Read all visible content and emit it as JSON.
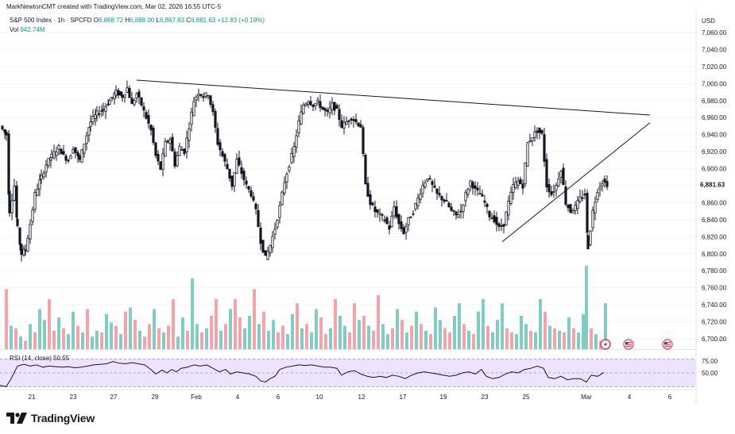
{
  "header": {
    "credit": "MarkNewtonCMT created with TradingView.com, Mar 02, 2026 16:55 UTC-5"
  },
  "legend": {
    "symbol": "S&P 500 Index · 1h · SPCFD",
    "open_label": "O",
    "open": "6,868.72",
    "high_label": "H",
    "high": "6,888.00",
    "low_label": "L",
    "low": "6,867.83",
    "close_label": "C",
    "close": "6,881.63",
    "change": "+12.83 (+0.19%)",
    "volume_label": "Vol",
    "volume": "942.74M"
  },
  "rsi": {
    "label": "RSI (14, close)",
    "value": "50.55"
  },
  "price_axis": {
    "currency": "USD",
    "current_price": "6,881.63"
  },
  "brand": {
    "name": "TradingView"
  },
  "colors": {
    "up": "#089981",
    "down": "#f23645",
    "candle": "#131722",
    "volume_up": "#7fccc2",
    "volume_down": "#f5a3a9",
    "rsi_band": "#e9def9",
    "rsi_border": "#b39ddb",
    "trendline": "#131722",
    "price_tag": "#ffffff"
  },
  "icons": [
    "flash-event-icon",
    "us-flag-event-icon",
    "us-flag-event-icon"
  ],
  "chart_data": {
    "type": "candlestick",
    "x_tick_labels": [
      "21",
      "23",
      "27",
      "29",
      "Feb",
      "4",
      "6",
      "10",
      "12",
      "17",
      "19",
      "23",
      "25",
      "Mar",
      "4",
      "6"
    ],
    "y_tick_labels": [
      "7,060.00",
      "7,040.00",
      "7,020.00",
      "7,000.00",
      "6,980.00",
      "6,960.00",
      "6,940.00",
      "6,920.00",
      "6,900.00",
      "6,880.00",
      "6,860.00",
      "6,840.00",
      "6,820.00",
      "6,800.00",
      "6,780.00",
      "6,760.00",
      "6,740.00",
      "6,720.00",
      "6,700.00"
    ],
    "ylim": [
      6694,
      7068
    ],
    "price_path": [
      [
        0,
        6950
      ],
      [
        8,
        6940
      ],
      [
        12,
        6850
      ],
      [
        18,
        6880
      ],
      [
        22,
        6830
      ],
      [
        27,
        6800
      ],
      [
        32,
        6805
      ],
      [
        38,
        6835
      ],
      [
        44,
        6870
      ],
      [
        52,
        6890
      ],
      [
        58,
        6905
      ],
      [
        65,
        6915
      ],
      [
        74,
        6925
      ],
      [
        80,
        6915
      ],
      [
        86,
        6910
      ],
      [
        92,
        6925
      ],
      [
        100,
        6910
      ],
      [
        106,
        6930
      ],
      [
        114,
        6955
      ],
      [
        122,
        6965
      ],
      [
        130,
        6970
      ],
      [
        138,
        6980
      ],
      [
        146,
        6990
      ],
      [
        154,
        6985
      ],
      [
        160,
        6995
      ],
      [
        166,
        6975
      ],
      [
        172,
        6988
      ],
      [
        178,
        6975
      ],
      [
        184,
        6960
      ],
      [
        190,
        6945
      ],
      [
        196,
        6915
      ],
      [
        202,
        6900
      ],
      [
        208,
        6930
      ],
      [
        214,
        6935
      ],
      [
        220,
        6905
      ],
      [
        226,
        6925
      ],
      [
        232,
        6920
      ],
      [
        238,
        6950
      ],
      [
        244,
        6980
      ],
      [
        250,
        6990
      ],
      [
        256,
        6985
      ],
      [
        262,
        6988
      ],
      [
        268,
        6965
      ],
      [
        274,
        6930
      ],
      [
        280,
        6915
      ],
      [
        286,
        6900
      ],
      [
        292,
        6880
      ],
      [
        298,
        6910
      ],
      [
        304,
        6895
      ],
      [
        310,
        6880
      ],
      [
        316,
        6870
      ],
      [
        322,
        6850
      ],
      [
        328,
        6815
      ],
      [
        334,
        6795
      ],
      [
        340,
        6810
      ],
      [
        346,
        6830
      ],
      [
        352,
        6855
      ],
      [
        358,
        6885
      ],
      [
        364,
        6905
      ],
      [
        370,
        6925
      ],
      [
        376,
        6955
      ],
      [
        382,
        6975
      ],
      [
        388,
        6980
      ],
      [
        394,
        6975
      ],
      [
        400,
        6978
      ],
      [
        406,
        6970
      ],
      [
        412,
        6965
      ],
      [
        418,
        6975
      ],
      [
        424,
        6968
      ],
      [
        430,
        6950
      ],
      [
        436,
        6955
      ],
      [
        442,
        6960
      ],
      [
        448,
        6955
      ],
      [
        454,
        6950
      ],
      [
        460,
        6880
      ],
      [
        466,
        6860
      ],
      [
        472,
        6850
      ],
      [
        478,
        6845
      ],
      [
        484,
        6840
      ],
      [
        490,
        6830
      ],
      [
        496,
        6855
      ],
      [
        502,
        6835
      ],
      [
        508,
        6825
      ],
      [
        514,
        6840
      ],
      [
        520,
        6850
      ],
      [
        526,
        6865
      ],
      [
        532,
        6880
      ],
      [
        538,
        6890
      ],
      [
        544,
        6880
      ],
      [
        550,
        6870
      ],
      [
        556,
        6865
      ],
      [
        562,
        6860
      ],
      [
        568,
        6850
      ],
      [
        574,
        6845
      ],
      [
        580,
        6850
      ],
      [
        586,
        6870
      ],
      [
        592,
        6885
      ],
      [
        598,
        6875
      ],
      [
        604,
        6870
      ],
      [
        610,
        6860
      ],
      [
        616,
        6845
      ],
      [
        622,
        6840
      ],
      [
        628,
        6830
      ],
      [
        634,
        6835
      ],
      [
        640,
        6860
      ],
      [
        646,
        6880
      ],
      [
        652,
        6885
      ],
      [
        658,
        6880
      ],
      [
        664,
        6930
      ],
      [
        670,
        6938
      ],
      [
        676,
        6945
      ],
      [
        682,
        6940
      ],
      [
        688,
        6880
      ],
      [
        694,
        6870
      ],
      [
        700,
        6880
      ],
      [
        706,
        6900
      ],
      [
        712,
        6860
      ],
      [
        718,
        6850
      ],
      [
        724,
        6855
      ],
      [
        730,
        6865
      ],
      [
        736,
        6870
      ],
      [
        740,
        6808
      ],
      [
        746,
        6850
      ],
      [
        752,
        6875
      ],
      [
        758,
        6885
      ],
      [
        764,
        6881.63
      ]
    ],
    "volume_bars": [
      [
        8,
        0.72,
        "down"
      ],
      [
        14,
        0.28,
        "up"
      ],
      [
        20,
        0.25,
        "down"
      ],
      [
        26,
        0.15,
        "up"
      ],
      [
        32,
        0.1,
        "down"
      ],
      [
        38,
        0.3,
        "up"
      ],
      [
        44,
        0.2,
        "down"
      ],
      [
        50,
        0.48,
        "up"
      ],
      [
        56,
        0.35,
        "up"
      ],
      [
        62,
        0.6,
        "down"
      ],
      [
        68,
        0.22,
        "down"
      ],
      [
        74,
        0.38,
        "up"
      ],
      [
        80,
        0.25,
        "down"
      ],
      [
        86,
        0.18,
        "up"
      ],
      [
        92,
        0.45,
        "up"
      ],
      [
        98,
        0.28,
        "down"
      ],
      [
        104,
        0.2,
        "up"
      ],
      [
        110,
        0.48,
        "down"
      ],
      [
        116,
        0.15,
        "up"
      ],
      [
        122,
        0.22,
        "up"
      ],
      [
        128,
        0.2,
        "down"
      ],
      [
        134,
        0.42,
        "up"
      ],
      [
        140,
        0.32,
        "up"
      ],
      [
        146,
        0.28,
        "down"
      ],
      [
        152,
        0.18,
        "up"
      ],
      [
        158,
        0.45,
        "down"
      ],
      [
        164,
        0.5,
        "up"
      ],
      [
        170,
        0.35,
        "down"
      ],
      [
        176,
        0.22,
        "up"
      ],
      [
        182,
        0.15,
        "down"
      ],
      [
        188,
        0.3,
        "down"
      ],
      [
        194,
        0.48,
        "up"
      ],
      [
        200,
        0.25,
        "down"
      ],
      [
        206,
        0.2,
        "up"
      ],
      [
        212,
        0.28,
        "down"
      ],
      [
        218,
        0.6,
        "down"
      ],
      [
        224,
        0.15,
        "up"
      ],
      [
        230,
        0.38,
        "up"
      ],
      [
        236,
        0.22,
        "down"
      ],
      [
        242,
        0.85,
        "up"
      ],
      [
        248,
        0.3,
        "up"
      ],
      [
        254,
        0.2,
        "down"
      ],
      [
        260,
        0.25,
        "up"
      ],
      [
        266,
        0.4,
        "down"
      ],
      [
        272,
        0.6,
        "down"
      ],
      [
        278,
        0.22,
        "up"
      ],
      [
        284,
        0.3,
        "down"
      ],
      [
        290,
        0.48,
        "up"
      ],
      [
        296,
        0.6,
        "down"
      ],
      [
        302,
        0.38,
        "down"
      ],
      [
        308,
        0.25,
        "up"
      ],
      [
        314,
        0.4,
        "up"
      ],
      [
        320,
        0.72,
        "down"
      ],
      [
        326,
        0.3,
        "up"
      ],
      [
        332,
        0.45,
        "down"
      ],
      [
        338,
        0.22,
        "up"
      ],
      [
        344,
        0.35,
        "up"
      ],
      [
        350,
        0.2,
        "down"
      ],
      [
        356,
        0.28,
        "down"
      ],
      [
        362,
        0.18,
        "up"
      ],
      [
        368,
        0.42,
        "up"
      ],
      [
        374,
        0.55,
        "down"
      ],
      [
        380,
        0.25,
        "up"
      ],
      [
        386,
        0.3,
        "down"
      ],
      [
        392,
        0.2,
        "up"
      ],
      [
        398,
        0.48,
        "up"
      ],
      [
        404,
        0.38,
        "down"
      ],
      [
        410,
        0.18,
        "down"
      ],
      [
        416,
        0.25,
        "up"
      ],
      [
        422,
        0.6,
        "down"
      ],
      [
        428,
        0.4,
        "up"
      ],
      [
        434,
        0.28,
        "up"
      ],
      [
        440,
        0.2,
        "down"
      ],
      [
        446,
        0.55,
        "down"
      ],
      [
        452,
        0.35,
        "up"
      ],
      [
        458,
        0.4,
        "down"
      ],
      [
        464,
        0.28,
        "up"
      ],
      [
        470,
        0.22,
        "down"
      ],
      [
        476,
        0.65,
        "down"
      ],
      [
        482,
        0.3,
        "up"
      ],
      [
        488,
        0.18,
        "up"
      ],
      [
        494,
        0.25,
        "down"
      ],
      [
        500,
        0.48,
        "up"
      ],
      [
        506,
        0.35,
        "down"
      ],
      [
        512,
        0.2,
        "up"
      ],
      [
        518,
        0.28,
        "down"
      ],
      [
        524,
        0.45,
        "up"
      ],
      [
        530,
        0.3,
        "down"
      ],
      [
        536,
        0.22,
        "up"
      ],
      [
        542,
        0.18,
        "down"
      ],
      [
        548,
        0.5,
        "up"
      ],
      [
        554,
        0.35,
        "up"
      ],
      [
        560,
        0.25,
        "down"
      ],
      [
        566,
        0.2,
        "down"
      ],
      [
        572,
        0.4,
        "up"
      ],
      [
        578,
        0.55,
        "up"
      ],
      [
        584,
        0.3,
        "down"
      ],
      [
        590,
        0.22,
        "up"
      ],
      [
        596,
        0.18,
        "down"
      ],
      [
        602,
        0.45,
        "up"
      ],
      [
        608,
        0.6,
        "up"
      ],
      [
        614,
        0.28,
        "down"
      ],
      [
        620,
        0.2,
        "up"
      ],
      [
        626,
        0.35,
        "up"
      ],
      [
        632,
        0.55,
        "up"
      ],
      [
        638,
        0.25,
        "down"
      ],
      [
        644,
        0.2,
        "down"
      ],
      [
        650,
        0.18,
        "up"
      ],
      [
        656,
        0.4,
        "up"
      ],
      [
        662,
        0.3,
        "up"
      ],
      [
        668,
        0.22,
        "down"
      ],
      [
        674,
        0.2,
        "up"
      ],
      [
        680,
        0.6,
        "up"
      ],
      [
        686,
        0.45,
        "down"
      ],
      [
        692,
        0.28,
        "up"
      ],
      [
        698,
        0.25,
        "down"
      ],
      [
        704,
        0.22,
        "up"
      ],
      [
        710,
        0.2,
        "down"
      ],
      [
        716,
        0.38,
        "up"
      ],
      [
        722,
        0.25,
        "down"
      ],
      [
        728,
        0.2,
        "up"
      ],
      [
        734,
        0.42,
        "up"
      ],
      [
        738,
        1.0,
        "up"
      ],
      [
        744,
        0.25,
        "down"
      ],
      [
        750,
        0.18,
        "up"
      ],
      [
        756,
        0.1,
        "down"
      ],
      [
        762,
        0.55,
        "up"
      ]
    ],
    "rsi_path": [
      [
        0,
        28
      ],
      [
        8,
        26
      ],
      [
        14,
        40
      ],
      [
        22,
        62
      ],
      [
        30,
        65
      ],
      [
        38,
        62
      ],
      [
        46,
        64
      ],
      [
        54,
        60
      ],
      [
        62,
        62
      ],
      [
        70,
        61
      ],
      [
        78,
        60
      ],
      [
        86,
        61
      ],
      [
        94,
        59
      ],
      [
        102,
        60
      ],
      [
        110,
        62
      ],
      [
        118,
        64
      ],
      [
        126,
        65
      ],
      [
        134,
        66
      ],
      [
        142,
        70
      ],
      [
        150,
        67
      ],
      [
        158,
        66
      ],
      [
        166,
        68
      ],
      [
        174,
        66
      ],
      [
        182,
        64
      ],
      [
        190,
        56
      ],
      [
        196,
        48
      ],
      [
        204,
        55
      ],
      [
        210,
        50
      ],
      [
        216,
        56
      ],
      [
        222,
        52
      ],
      [
        228,
        58
      ],
      [
        236,
        60
      ],
      [
        244,
        64
      ],
      [
        252,
        62
      ],
      [
        260,
        64
      ],
      [
        268,
        58
      ],
      [
        276,
        52
      ],
      [
        284,
        56
      ],
      [
        290,
        48
      ],
      [
        298,
        52
      ],
      [
        306,
        50
      ],
      [
        314,
        48
      ],
      [
        322,
        44
      ],
      [
        328,
        36
      ],
      [
        334,
        34
      ],
      [
        340,
        40
      ],
      [
        346,
        44
      ],
      [
        352,
        56
      ],
      [
        360,
        60
      ],
      [
        368,
        62
      ],
      [
        376,
        64
      ],
      [
        384,
        63
      ],
      [
        392,
        64
      ],
      [
        400,
        62
      ],
      [
        408,
        60
      ],
      [
        416,
        60
      ],
      [
        424,
        58
      ],
      [
        430,
        46
      ],
      [
        438,
        52
      ],
      [
        446,
        54
      ],
      [
        454,
        48
      ],
      [
        462,
        44
      ],
      [
        470,
        42
      ],
      [
        478,
        44
      ],
      [
        486,
        42
      ],
      [
        494,
        46
      ],
      [
        502,
        44
      ],
      [
        510,
        40
      ],
      [
        518,
        46
      ],
      [
        526,
        50
      ],
      [
        534,
        52
      ],
      [
        542,
        50
      ],
      [
        550,
        48
      ],
      [
        558,
        46
      ],
      [
        566,
        44
      ],
      [
        574,
        46
      ],
      [
        582,
        50
      ],
      [
        590,
        52
      ],
      [
        598,
        48
      ],
      [
        606,
        56
      ],
      [
        612,
        44
      ],
      [
        620,
        40
      ],
      [
        628,
        42
      ],
      [
        636,
        48
      ],
      [
        644,
        52
      ],
      [
        652,
        50
      ],
      [
        660,
        56
      ],
      [
        668,
        58
      ],
      [
        676,
        62
      ],
      [
        684,
        58
      ],
      [
        690,
        42
      ],
      [
        698,
        40
      ],
      [
        706,
        44
      ],
      [
        714,
        38
      ],
      [
        722,
        40
      ],
      [
        730,
        40
      ],
      [
        738,
        34
      ],
      [
        744,
        46
      ],
      [
        752,
        44
      ],
      [
        760,
        50.55
      ]
    ],
    "rsi_levels": {
      "upper": 75,
      "middle": 50
    },
    "trendlines": [
      {
        "from": [
          172,
          7004
        ],
        "to": [
          818,
          6963
        ]
      },
      {
        "from": [
          632,
          6814
        ],
        "to": [
          818,
          6954
        ]
      }
    ]
  }
}
